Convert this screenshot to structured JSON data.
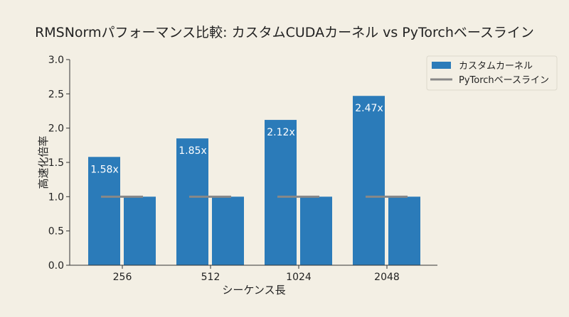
{
  "chart_data": {
    "type": "bar",
    "title": "RMSNormパフォーマンス比較: カスタムCUDAカーネル vs PyTorchベースライン",
    "xlabel": "シーケンス長",
    "ylabel": "高速化倍率",
    "categories": [
      "256",
      "512",
      "1024",
      "2048"
    ],
    "series": [
      {
        "name": "カスタムカーネル",
        "values": [
          1.58,
          1.85,
          2.12,
          2.47
        ],
        "labels": [
          "1.58x",
          "1.85x",
          "2.12x",
          "2.47x"
        ],
        "color": "#2b7bb9"
      },
      {
        "values": [
          1.0,
          1.0,
          1.0,
          1.0
        ],
        "color": "#2b7bb9"
      }
    ],
    "baseline": {
      "name": "PyTorchベースライン",
      "value": 1.0,
      "color": "#888888"
    },
    "ylim": [
      0,
      3.0
    ],
    "yticks": [
      "0.0",
      "0.5",
      "1.0",
      "1.5",
      "2.0",
      "2.5",
      "3.0"
    ],
    "grid": false,
    "legend": "top-right",
    "background": "#f3efe4"
  }
}
